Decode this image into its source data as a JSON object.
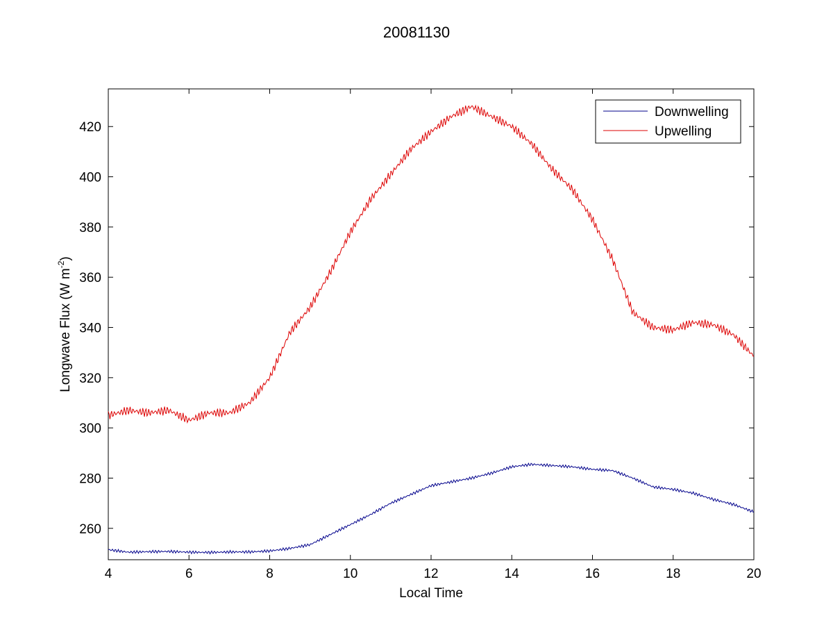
{
  "chart_data": {
    "type": "line",
    "title": "20081130",
    "xlabel": "Local Time",
    "ylabel_main": "Longwave Flux (W m",
    "ylabel_sup": "-2",
    "ylabel_close": ")",
    "xlim": [
      4,
      20
    ],
    "ylim": [
      247.5,
      435
    ],
    "xticks": [
      4,
      6,
      8,
      10,
      12,
      14,
      16,
      18,
      20
    ],
    "yticks": [
      260,
      280,
      300,
      320,
      340,
      360,
      380,
      400,
      420
    ],
    "legend_position": "top-right",
    "grid": false,
    "series": [
      {
        "name": "Downwelling",
        "color": "#00008B",
        "x": [
          4.0,
          4.5,
          5.0,
          5.5,
          6.0,
          6.5,
          7.0,
          7.5,
          8.0,
          8.5,
          9.0,
          9.5,
          10.0,
          10.5,
          11.0,
          11.5,
          12.0,
          12.5,
          13.0,
          13.5,
          14.0,
          14.5,
          15.0,
          15.5,
          16.0,
          16.5,
          17.0,
          17.5,
          18.0,
          18.5,
          19.0,
          19.5,
          20.0
        ],
        "y": [
          251.5,
          250.5,
          250.7,
          250.8,
          250.5,
          250.4,
          250.6,
          250.6,
          251.0,
          252.0,
          253.5,
          257.5,
          261.5,
          265.5,
          270.0,
          273.5,
          277.0,
          278.5,
          280.0,
          282.0,
          284.5,
          285.5,
          285.0,
          284.5,
          283.5,
          283.0,
          280.0,
          276.5,
          275.5,
          274.0,
          271.5,
          269.5,
          266.5
        ]
      },
      {
        "name": "Upwelling",
        "color": "#DD0000",
        "x": [
          4.0,
          4.5,
          5.0,
          5.5,
          6.0,
          6.5,
          7.0,
          7.5,
          8.0,
          8.5,
          9.0,
          9.5,
          10.0,
          10.5,
          11.0,
          11.5,
          12.0,
          12.5,
          13.0,
          13.5,
          14.0,
          14.5,
          15.0,
          15.5,
          16.0,
          16.5,
          17.0,
          17.5,
          18.0,
          18.5,
          19.0,
          19.5,
          20.0
        ],
        "y": [
          305.0,
          307.0,
          306.0,
          307.0,
          303.0,
          306.0,
          306.0,
          310.0,
          320.0,
          338.0,
          348.0,
          362.0,
          378.0,
          391.0,
          401.0,
          411.0,
          418.0,
          424.0,
          428.0,
          424.0,
          420.0,
          413.0,
          403.0,
          395.0,
          383.0,
          367.0,
          346.0,
          340.0,
          339.0,
          342.0,
          341.0,
          337.0,
          328.5
        ]
      }
    ]
  }
}
